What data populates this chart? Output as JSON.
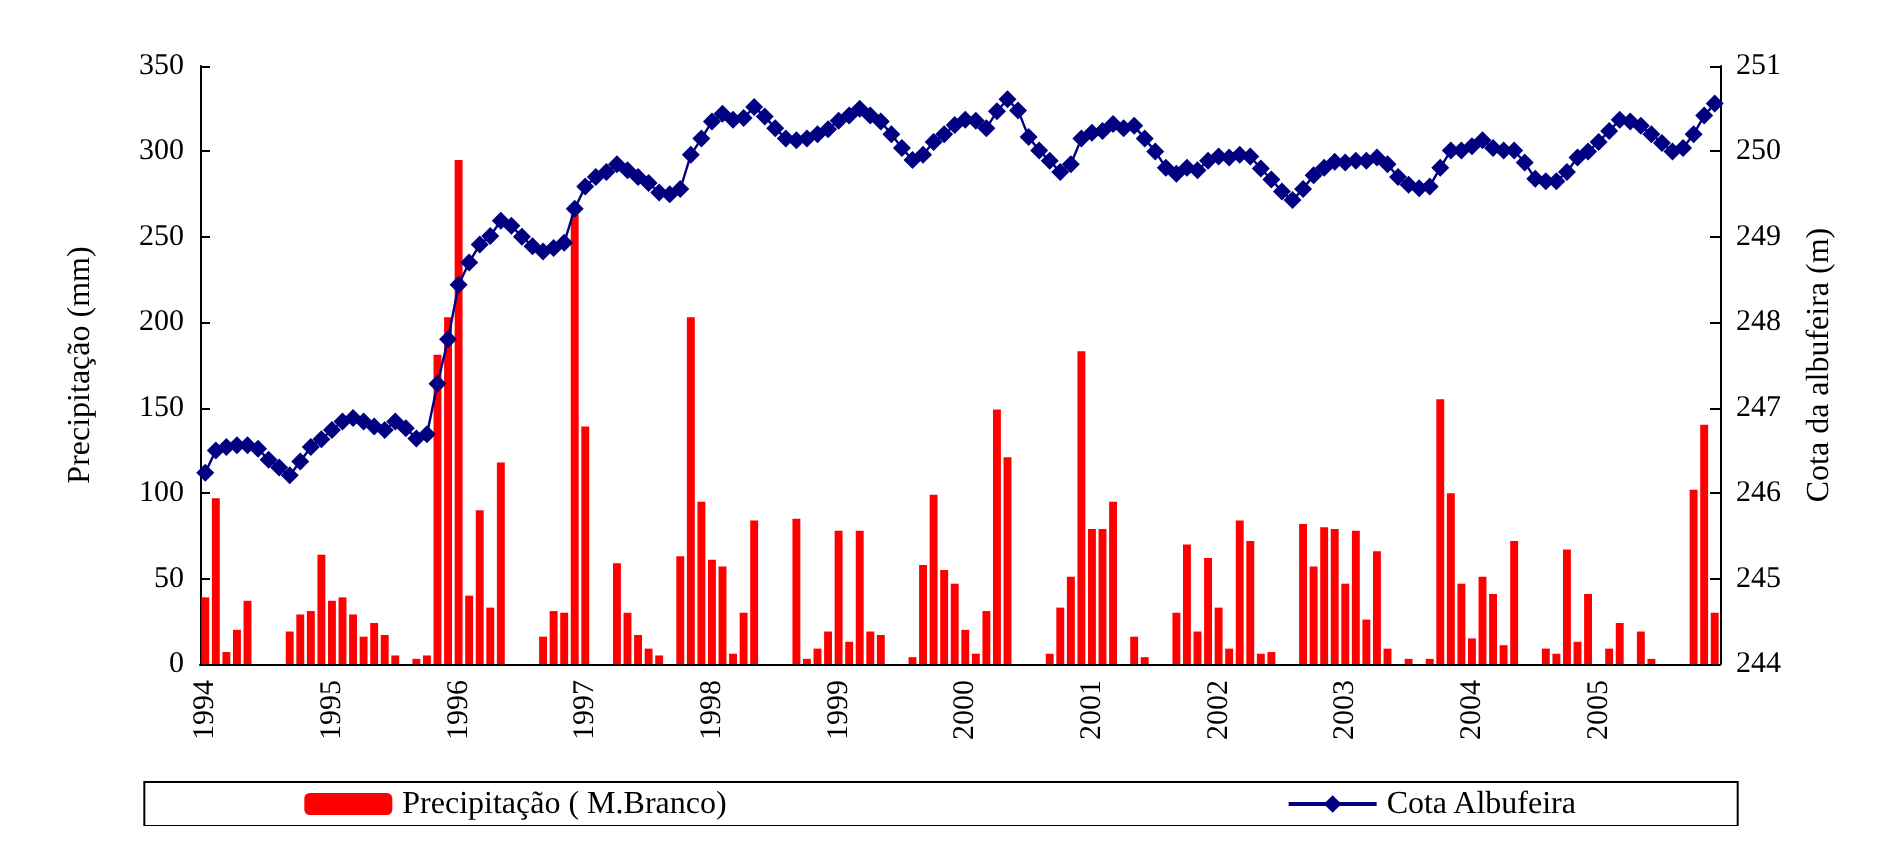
{
  "chart_data": {
    "type": "bar",
    "ylabel": "Precipitação (mm)",
    "y2label": "Cota da albufeira (m)",
    "ylim": [
      0,
      350
    ],
    "yticks": [
      0,
      50,
      100,
      150,
      200,
      250,
      300,
      350
    ],
    "y2lim": [
      244,
      251
    ],
    "y2ticks": [
      244,
      245,
      246,
      247,
      248,
      249,
      250,
      251
    ],
    "legend": "bottom",
    "marker": "diamond",
    "categories": [
      "1994",
      null,
      null,
      null,
      null,
      null,
      null,
      null,
      null,
      null,
      null,
      null,
      "1995",
      null,
      null,
      null,
      null,
      null,
      null,
      null,
      null,
      null,
      null,
      null,
      "1996",
      null,
      null,
      null,
      null,
      null,
      null,
      null,
      null,
      null,
      null,
      null,
      "1997",
      null,
      null,
      null,
      null,
      null,
      null,
      null,
      null,
      null,
      null,
      null,
      "1998",
      null,
      null,
      null,
      null,
      null,
      null,
      null,
      null,
      null,
      null,
      null,
      "1999",
      null,
      null,
      null,
      null,
      null,
      null,
      null,
      null,
      null,
      null,
      null,
      "2000",
      null,
      null,
      null,
      null,
      null,
      null,
      null,
      null,
      null,
      null,
      null,
      "2001",
      null,
      null,
      null,
      null,
      null,
      null,
      null,
      null,
      null,
      null,
      null,
      "2002",
      null,
      null,
      null,
      null,
      null,
      null,
      null,
      null,
      null,
      null,
      null,
      "2003",
      null,
      null,
      null,
      null,
      null,
      null,
      null,
      null,
      null,
      null,
      null,
      "2004",
      null,
      null,
      null,
      null,
      null,
      null,
      null,
      null,
      null,
      null,
      null,
      "2005",
      null,
      null,
      null,
      null,
      null,
      null,
      null,
      null,
      null,
      null,
      null
    ],
    "series": [
      {
        "name": "Precipitação ( M.Branco)",
        "color": "#ff0000",
        "values": [
          39,
          97,
          7,
          20,
          37,
          0,
          0,
          0,
          19,
          29,
          31,
          64,
          37,
          39,
          29,
          16,
          24,
          17,
          5,
          0,
          3,
          5,
          181,
          203,
          295,
          40,
          90,
          33,
          118,
          0,
          0,
          0,
          16,
          31,
          30,
          263,
          139,
          0,
          0,
          59,
          30,
          17,
          9,
          5,
          0,
          63,
          203,
          95,
          61,
          57,
          6,
          30,
          84,
          0,
          0,
          0,
          85,
          3,
          9,
          19,
          78,
          13,
          78,
          19,
          17,
          0,
          0,
          4,
          58,
          99,
          55,
          47,
          20,
          6,
          31,
          149,
          121,
          0,
          0,
          0,
          6,
          33,
          51,
          183,
          79,
          79,
          95,
          0,
          16,
          4,
          0,
          0,
          30,
          70,
          19,
          62,
          33,
          9,
          84,
          72,
          6,
          7,
          0,
          0,
          82,
          57,
          80,
          79,
          47,
          78,
          26,
          66,
          9,
          0,
          3,
          0,
          3,
          155,
          100,
          47,
          15,
          51,
          41,
          11,
          72,
          0,
          0,
          9,
          6,
          67,
          13,
          41,
          0,
          9,
          24,
          0,
          19,
          3,
          0,
          0,
          0,
          102,
          140,
          30
        ]
      },
      {
        "name": "Cota Albufeira",
        "type": "line",
        "axis": "y2",
        "color": "#000080",
        "values": [
          246.24,
          246.5,
          246.54,
          246.56,
          246.56,
          246.52,
          246.39,
          246.3,
          246.21,
          246.37,
          246.54,
          246.63,
          246.74,
          246.84,
          246.88,
          246.84,
          246.78,
          246.74,
          246.84,
          246.76,
          246.64,
          246.69,
          247.28,
          247.8,
          248.44,
          248.7,
          248.91,
          249.01,
          249.19,
          249.13,
          249.0,
          248.89,
          248.83,
          248.87,
          248.93,
          249.33,
          249.59,
          249.7,
          249.76,
          249.85,
          249.78,
          249.7,
          249.63,
          249.52,
          249.5,
          249.56,
          249.96,
          250.15,
          250.35,
          250.44,
          250.37,
          250.39,
          250.52,
          250.41,
          250.27,
          250.15,
          250.13,
          250.15,
          250.2,
          250.26,
          250.36,
          250.42,
          250.5,
          250.42,
          250.35,
          250.2,
          250.04,
          249.9,
          249.96,
          250.11,
          250.2,
          250.31,
          250.37,
          250.36,
          250.27,
          250.47,
          250.61,
          250.48,
          250.17,
          250.01,
          249.89,
          249.76,
          249.85,
          250.15,
          250.22,
          250.24,
          250.32,
          250.27,
          250.3,
          250.15,
          250.0,
          249.81,
          249.74,
          249.81,
          249.78,
          249.89,
          249.94,
          249.93,
          249.96,
          249.94,
          249.8,
          249.67,
          249.53,
          249.43,
          249.56,
          249.72,
          249.81,
          249.88,
          249.87,
          249.89,
          249.89,
          249.93,
          249.85,
          249.7,
          249.61,
          249.57,
          249.59,
          249.81,
          250.01,
          250.01,
          250.06,
          250.13,
          250.04,
          250.01,
          250.01,
          249.87,
          249.68,
          249.65,
          249.65,
          249.76,
          249.93,
          250.0,
          250.11,
          250.24,
          250.37,
          250.35,
          250.3,
          250.2,
          250.1,
          250.0,
          250.04,
          250.2,
          250.42,
          250.56
        ]
      }
    ]
  }
}
